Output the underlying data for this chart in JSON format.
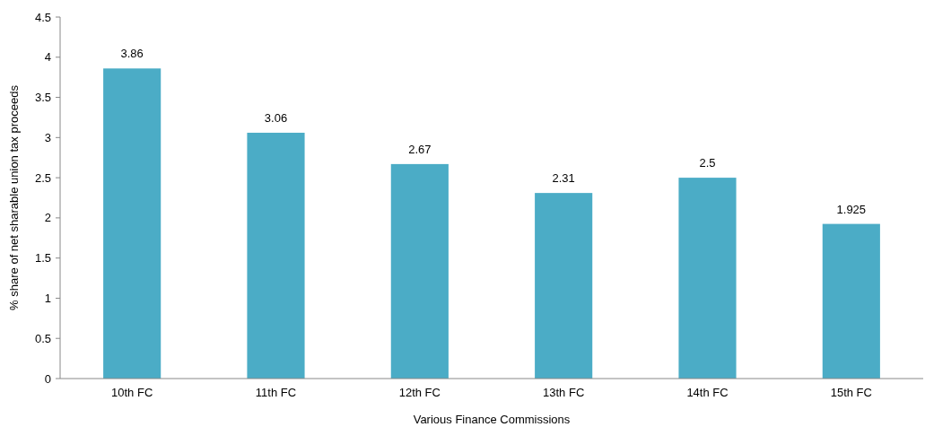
{
  "chart_data": {
    "type": "bar",
    "xlabel": "Various Finance Commissions",
    "ylabel": "% share of net sharable union tax proceeds",
    "categories": [
      "10th FC",
      "11th FC",
      "12th FC",
      "13th FC",
      "14th FC",
      "15th FC"
    ],
    "values": [
      3.86,
      3.06,
      2.67,
      2.31,
      2.5,
      1.925
    ],
    "color": "#4bacc6",
    "ylim": [
      0,
      4.5
    ],
    "yticks": [
      0,
      0.5,
      1,
      1.5,
      2,
      2.5,
      3,
      3.5,
      4,
      4.5
    ],
    "data_labels": true
  }
}
